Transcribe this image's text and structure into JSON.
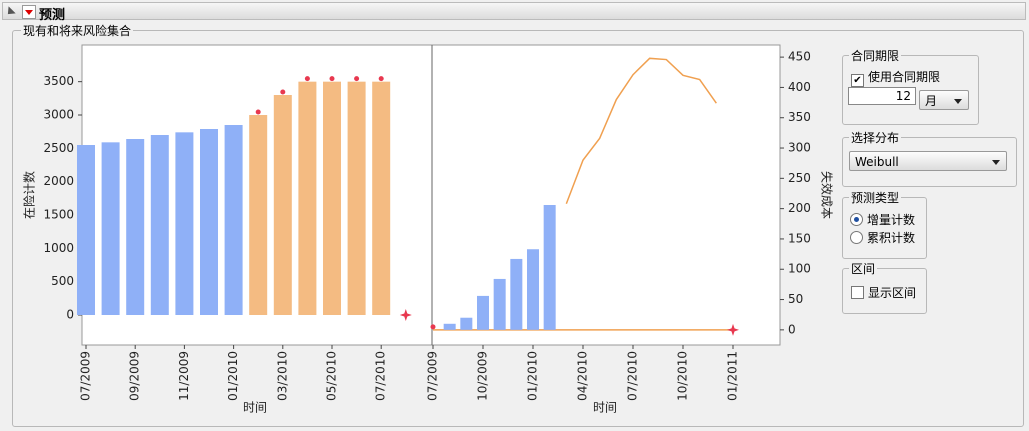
{
  "header": {
    "title": "预测"
  },
  "panel": {
    "title": "现有和将来风险集合"
  },
  "chart_data": [
    {
      "type": "bar",
      "y_label": "在险计数",
      "x_label": "时间",
      "categories": [
        "07/2009",
        null,
        "09/2009",
        null,
        "11/2009",
        null,
        "01/2010",
        null,
        "03/2010",
        null,
        "05/2010",
        null,
        "07/2010",
        null
      ],
      "ylim": [
        -450,
        4050
      ],
      "yticks": [
        0,
        500,
        1000,
        1500,
        2000,
        2500,
        3000,
        3500
      ],
      "series": [
        {
          "kind": "bar",
          "color": "#8fb0f7",
          "values": [
            2550,
            2590,
            2640,
            2700,
            2740,
            2790,
            2850,
            null,
            null,
            null,
            null,
            null,
            null,
            null
          ]
        },
        {
          "kind": "bar",
          "color": "#f4bb82",
          "values": [
            null,
            null,
            null,
            null,
            null,
            null,
            null,
            3000,
            3300,
            3500,
            3500,
            3500,
            3500,
            null
          ]
        },
        {
          "kind": "dot",
          "color": "#e8384f",
          "values": [
            null,
            null,
            null,
            null,
            null,
            null,
            null,
            3000,
            3300,
            3500,
            3500,
            3500,
            3500,
            null
          ]
        },
        {
          "kind": "star",
          "color": "#e8384f",
          "values": [
            null,
            null,
            null,
            null,
            null,
            null,
            null,
            null,
            null,
            null,
            null,
            null,
            null,
            0
          ]
        }
      ]
    },
    {
      "type": "bar",
      "y_label": "失效成本",
      "x_label": "时间",
      "categories": [
        "07/2009",
        null,
        null,
        "10/2009",
        null,
        null,
        "01/2010",
        null,
        null,
        "04/2010",
        null,
        null,
        "07/2010",
        null,
        null,
        "10/2010",
        null,
        null,
        "01/2011"
      ],
      "ylim": [
        -25,
        470
      ],
      "yticks": [
        0,
        50,
        100,
        150,
        200,
        250,
        300,
        350,
        400,
        450
      ],
      "series": [
        {
          "kind": "line",
          "color": "#f0a050",
          "values": [
            0,
            0,
            0,
            0,
            0,
            0,
            0,
            0,
            0,
            0,
            0,
            0,
            0,
            0,
            0,
            0,
            0,
            0,
            0
          ]
        },
        {
          "kind": "bar",
          "color": "#8fb0f7",
          "values": [
            null,
            10,
            20,
            56,
            84,
            117,
            133,
            206,
            null,
            null,
            null,
            null,
            null,
            null,
            null,
            null,
            null,
            null,
            null
          ]
        },
        {
          "kind": "line",
          "color": "#f0a050",
          "values": [
            null,
            null,
            null,
            null,
            null,
            null,
            null,
            null,
            208,
            280,
            316,
            380,
            421,
            448,
            446,
            420,
            413,
            374,
            null
          ]
        },
        {
          "kind": "dot",
          "color": "#e8384f",
          "values": [
            0,
            null,
            null,
            null,
            null,
            null,
            null,
            null,
            null,
            null,
            null,
            null,
            null,
            null,
            null,
            null,
            null,
            null,
            null
          ]
        },
        {
          "kind": "star",
          "color": "#e8384f",
          "values": [
            null,
            null,
            null,
            null,
            null,
            null,
            null,
            null,
            null,
            null,
            null,
            null,
            null,
            null,
            null,
            null,
            null,
            null,
            0
          ]
        }
      ]
    }
  ],
  "controls": {
    "contract": {
      "title": "合同期限",
      "checkbox": "使用合同期限",
      "checked": true,
      "value": "12",
      "unit": "月"
    },
    "distribution": {
      "title": "选择分布",
      "value": "Weibull"
    },
    "forecast_type": {
      "title": "预测类型",
      "options": [
        "增量计数",
        "累积计数"
      ],
      "selected": 0
    },
    "interval": {
      "title": "区间",
      "checkbox": "显示区间",
      "checked": false
    }
  }
}
